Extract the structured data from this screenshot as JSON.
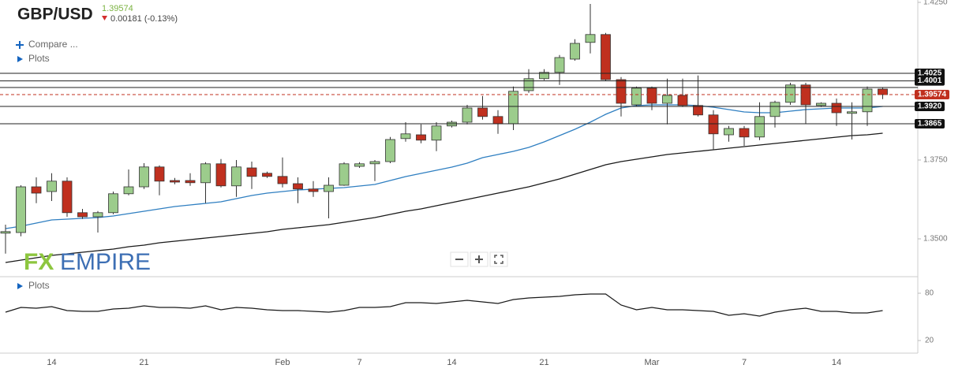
{
  "header": {
    "symbol": "GBP/USD",
    "price": "1.39574",
    "change": "0.00181 (-0.13%)",
    "compare": "Compare ...",
    "plots": "Plots",
    "lower_plots": "Plots",
    "logo": {
      "fx": "FX",
      "empire": "EMPIRE"
    }
  },
  "chart_data": [
    {
      "type": "candlestick",
      "categories": [
        null,
        null,
        null,
        "14",
        null,
        null,
        null,
        null,
        null,
        "21",
        null,
        null,
        null,
        null,
        null,
        null,
        null,
        null,
        "Feb",
        null,
        null,
        null,
        null,
        "7",
        null,
        null,
        null,
        null,
        null,
        "14",
        null,
        null,
        null,
        null,
        null,
        "21",
        null,
        null,
        null,
        null,
        null,
        null,
        "Mar",
        null,
        null,
        null,
        null,
        null,
        "7",
        null,
        null,
        null,
        null,
        null,
        "14",
        null,
        null,
        null
      ],
      "open": [
        1.3518,
        1.352,
        1.3665,
        1.365,
        1.3683,
        1.3583,
        1.357,
        1.3583,
        1.3643,
        1.3665,
        1.3728,
        1.3685,
        1.3685,
        1.3678,
        1.3738,
        1.3668,
        1.3725,
        1.3708,
        1.3698,
        1.3675,
        1.3658,
        1.365,
        1.367,
        1.373,
        1.3738,
        1.3745,
        1.3818,
        1.383,
        1.3813,
        1.3858,
        1.387,
        1.3915,
        1.3888,
        1.3865,
        1.397,
        1.4008,
        1.4028,
        1.407,
        1.4123,
        1.4148,
        1.4005,
        1.3925,
        1.3978,
        1.393,
        1.3955,
        1.3923,
        1.3893,
        1.383,
        1.385,
        1.3823,
        1.3888,
        1.3933,
        1.3988,
        1.3923,
        1.393,
        1.3898,
        1.3903,
        1.3975
      ],
      "high": [
        1.3545,
        1.367,
        1.3695,
        1.3708,
        1.3695,
        1.3595,
        1.3588,
        1.365,
        1.372,
        1.374,
        1.3733,
        1.3693,
        1.3708,
        1.3743,
        1.3753,
        1.375,
        1.3745,
        1.3713,
        1.3758,
        1.3695,
        1.3683,
        1.3695,
        1.3743,
        1.3743,
        1.375,
        1.3823,
        1.387,
        1.3863,
        1.387,
        1.3875,
        1.3925,
        1.3953,
        1.3908,
        1.3983,
        1.4038,
        1.4038,
        1.4083,
        1.4133,
        1.4245,
        1.4153,
        1.4013,
        1.3983,
        1.3983,
        1.4008,
        1.4008,
        1.4018,
        1.3908,
        1.3858,
        1.3858,
        1.3933,
        1.3938,
        1.3995,
        1.3995,
        1.3933,
        1.3945,
        1.3933,
        1.3983,
        1.398
      ],
      "low": [
        1.3453,
        1.3508,
        1.3613,
        1.362,
        1.357,
        1.3563,
        1.352,
        1.3578,
        1.3638,
        1.3658,
        1.3638,
        1.3673,
        1.3668,
        1.3613,
        1.3663,
        1.3633,
        1.3658,
        1.3693,
        1.3663,
        1.3613,
        1.3633,
        1.3565,
        1.3668,
        1.3725,
        1.3683,
        1.374,
        1.3808,
        1.3803,
        1.3778,
        1.3853,
        1.3863,
        1.3878,
        1.3833,
        1.3845,
        1.3963,
        1.4003,
        1.3988,
        1.4065,
        1.4088,
        1.4,
        1.3888,
        1.392,
        1.3908,
        1.3863,
        1.3918,
        1.3888,
        1.3783,
        1.3808,
        1.3795,
        1.3813,
        1.3853,
        1.3925,
        1.3865,
        1.3918,
        1.3858,
        1.3815,
        1.3858,
        1.3943
      ],
      "close": [
        1.3523,
        1.3665,
        1.3645,
        1.3683,
        1.3583,
        1.357,
        1.3583,
        1.3643,
        1.3665,
        1.3728,
        1.3683,
        1.368,
        1.3678,
        1.3738,
        1.3668,
        1.3728,
        1.3698,
        1.3698,
        1.3675,
        1.3658,
        1.365,
        1.367,
        1.3738,
        1.3738,
        1.3745,
        1.3815,
        1.3833,
        1.3813,
        1.3858,
        1.387,
        1.3915,
        1.3888,
        1.3865,
        1.3968,
        1.4008,
        1.4028,
        1.4075,
        1.412,
        1.4148,
        1.4005,
        1.393,
        1.3978,
        1.393,
        1.3955,
        1.3923,
        1.3893,
        1.3833,
        1.385,
        1.3823,
        1.3888,
        1.3933,
        1.3988,
        1.3925,
        1.393,
        1.39,
        1.3903,
        1.3975,
        1.39574
      ],
      "up_color": "#9ccc8c",
      "down_color": "#c0301f",
      "series": [
        {
          "color": "#2f7fc1",
          "values": [
            1.35325,
            1.354,
            1.355,
            1.356,
            1.35625,
            1.3565,
            1.35675,
            1.35725,
            1.358,
            1.35875,
            1.3595,
            1.36025,
            1.36075,
            1.36125,
            1.36175,
            1.36275,
            1.36375,
            1.3645,
            1.365,
            1.3655,
            1.36575,
            1.366,
            1.36625,
            1.36675,
            1.36725,
            1.3685,
            1.36975,
            1.37075,
            1.37175,
            1.37275,
            1.374,
            1.37575,
            1.37675,
            1.37775,
            1.379,
            1.38075,
            1.38275,
            1.38475,
            1.387,
            1.3895,
            1.3915,
            1.39225,
            1.3925,
            1.3925,
            1.3925,
            1.39225,
            1.39175,
            1.391,
            1.39025,
            1.39,
            1.39,
            1.3905,
            1.391,
            1.39125,
            1.3915,
            1.3915,
            1.3915,
            1.392
          ]
        },
        {
          "color": "#1a1a1a",
          "values": [
            1.3425,
            1.34325,
            1.344,
            1.34475,
            1.34525,
            1.34575,
            1.34625,
            1.34675,
            1.3475,
            1.348,
            1.34875,
            1.34925,
            1.34975,
            1.35025,
            1.35075,
            1.35125,
            1.35175,
            1.35225,
            1.353,
            1.3535,
            1.354,
            1.3545,
            1.35525,
            1.356,
            1.35675,
            1.35775,
            1.35875,
            1.3595,
            1.3605,
            1.3615,
            1.3625,
            1.3635,
            1.3645,
            1.3655,
            1.3665,
            1.36775,
            1.369,
            1.3705,
            1.372,
            1.3735,
            1.3745,
            1.37525,
            1.376,
            1.37675,
            1.37725,
            1.37775,
            1.37825,
            1.37875,
            1.37925,
            1.37975,
            1.38025,
            1.38075,
            1.38125,
            1.38175,
            1.38225,
            1.38275,
            1.383,
            1.3835
          ]
        }
      ],
      "levels": [
        {
          "value": 1.4025,
          "label": "1.4025"
        },
        {
          "value": 1.4001,
          "label": "1.4001"
        },
        {
          "value": 1.398
        },
        {
          "value": 1.392,
          "label": "1.3920"
        },
        {
          "value": 1.3865,
          "label": "1.3865"
        }
      ],
      "last_price": {
        "value": 1.39574,
        "label": "1.39574",
        "color": "#c0301f"
      },
      "ylim": [
        1.338,
        1.42575
      ],
      "yticks": [
        {
          "value": 1.425,
          "label": "1.4250"
        },
        {
          "value": 1.375,
          "label": "1.3750"
        },
        {
          "value": 1.35,
          "label": "1.3500"
        }
      ]
    },
    {
      "type": "line",
      "color": "#1a1a1a",
      "values": [
        56,
        62,
        61,
        63,
        58,
        57,
        57,
        60,
        61,
        64,
        62,
        62,
        61,
        64,
        59,
        62,
        61,
        59,
        58,
        58,
        57,
        56,
        58,
        62,
        62,
        63,
        68,
        68,
        67,
        69,
        71,
        69,
        67,
        72,
        74,
        75,
        76,
        78,
        79,
        79,
        65,
        59,
        62,
        59,
        59,
        58,
        57,
        52,
        54,
        51,
        56,
        59,
        61,
        57,
        57,
        55,
        55,
        58
      ],
      "ylim": [
        5,
        100
      ],
      "yticks": [
        80,
        20
      ]
    }
  ]
}
